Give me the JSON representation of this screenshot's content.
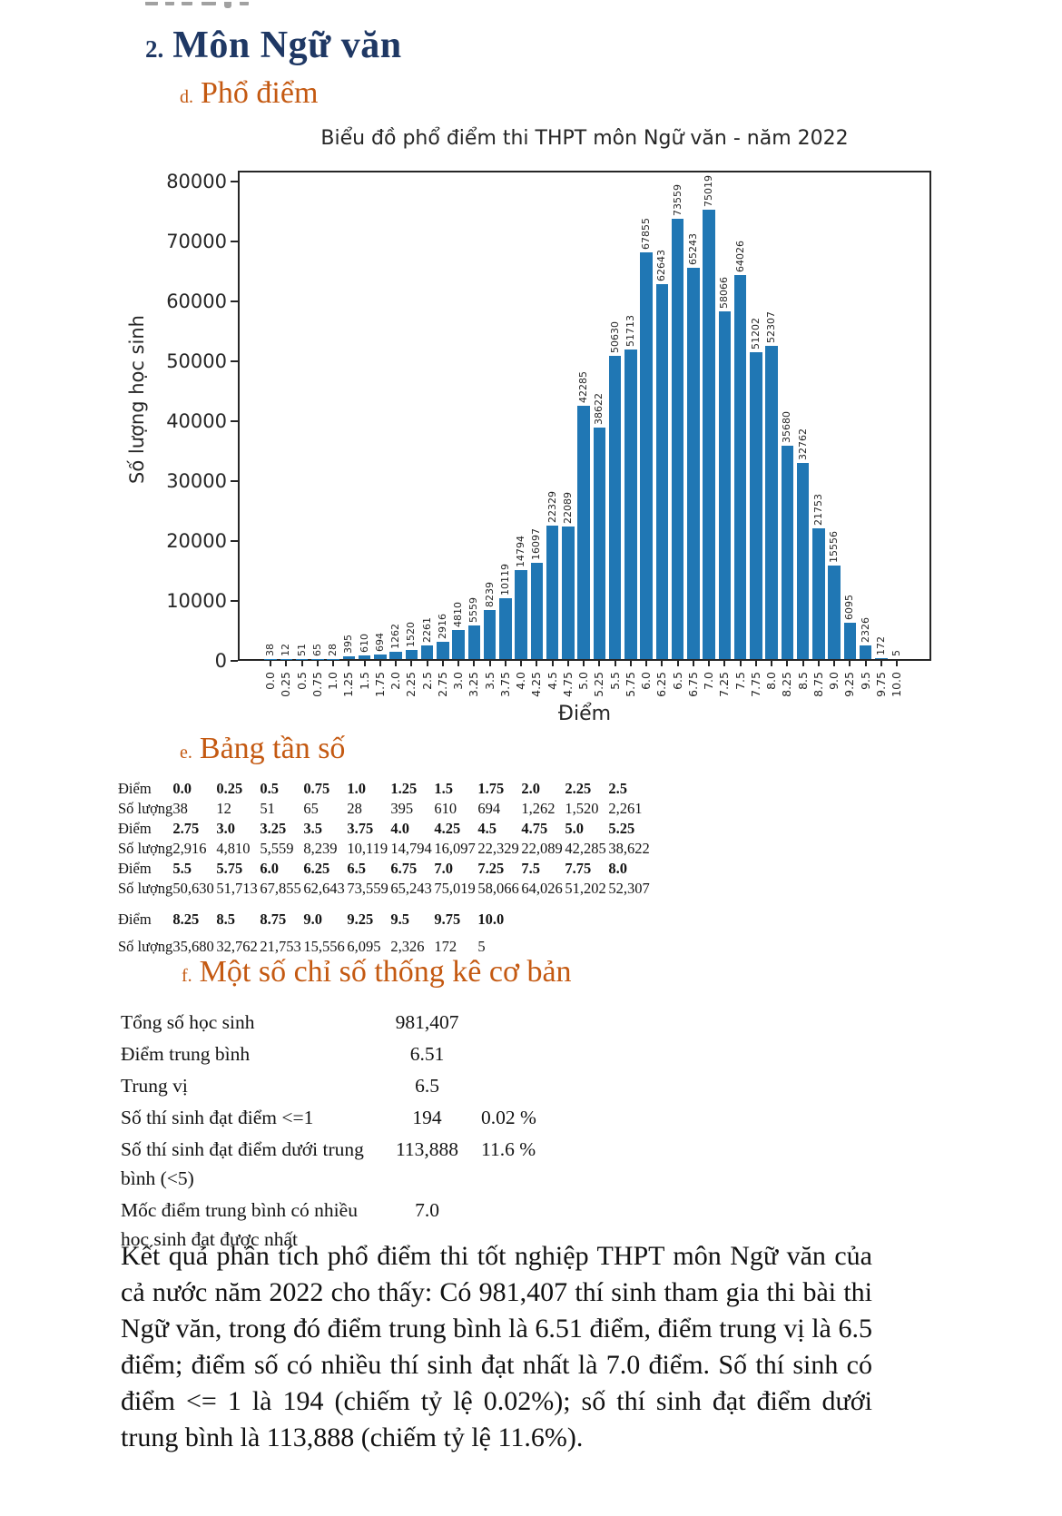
{
  "page": {
    "section_number": "2.",
    "section_title": "Môn Ngữ văn",
    "sub_d_prefix": "d.",
    "sub_d_title": "Phổ điểm",
    "sub_e_prefix": "e.",
    "sub_e_title": "Bảng tần số",
    "sub_f_prefix": "f.",
    "sub_f_title": "Một số chỉ số thống kê cơ bản"
  },
  "chart_data": {
    "type": "bar",
    "title": "Biểu đồ phổ điểm thi THPT môn Ngữ văn - năm 2022",
    "xlabel": "Điểm",
    "ylabel": "Số lượng học sinh",
    "categories": [
      "0.0",
      "0.25",
      "0.5",
      "0.75",
      "1.0",
      "1.25",
      "1.5",
      "1.75",
      "2.0",
      "2.25",
      "2.5",
      "2.75",
      "3.0",
      "3.25",
      "3.5",
      "3.75",
      "4.0",
      "4.25",
      "4.5",
      "4.75",
      "5.0",
      "5.25",
      "5.5",
      "5.75",
      "6.0",
      "6.25",
      "6.5",
      "6.75",
      "7.0",
      "7.25",
      "7.5",
      "7.75",
      "8.0",
      "8.25",
      "8.5",
      "8.75",
      "9.0",
      "9.25",
      "9.5",
      "9.75",
      "10.0"
    ],
    "values": [
      38,
      12,
      51,
      65,
      28,
      395,
      610,
      694,
      1262,
      1520,
      2261,
      2916,
      4810,
      5559,
      8239,
      10119,
      14794,
      16097,
      22329,
      22089,
      42285,
      38622,
      50630,
      51713,
      67855,
      62643,
      73559,
      65243,
      75019,
      58066,
      64026,
      51202,
      52307,
      35680,
      32762,
      21753,
      15556,
      6095,
      2326,
      172,
      5
    ],
    "yticks": [
      0,
      10000,
      20000,
      30000,
      40000,
      50000,
      60000,
      70000,
      80000
    ],
    "ylim": [
      0,
      81200
    ],
    "bar_labels_rotation": 90,
    "grid": false,
    "legend": null,
    "bar_color": "#2077b4"
  },
  "freq_table": {
    "score_label": "Điểm",
    "count_label": "Số lượng",
    "groups": [
      {
        "scores": [
          "0.0",
          "0.25",
          "0.5",
          "0.75",
          "1.0",
          "1.25",
          "1.5",
          "1.75",
          "2.0",
          "2.25",
          "2.5"
        ],
        "counts": [
          "38",
          "12",
          "51",
          "65",
          "28",
          "395",
          "610",
          "694",
          "1,262",
          "1,520",
          "2,261"
        ]
      },
      {
        "scores": [
          "2.75",
          "3.0",
          "3.25",
          "3.5",
          "3.75",
          "4.0",
          "4.25",
          "4.5",
          "4.75",
          "5.0",
          "5.25"
        ],
        "counts": [
          "2,916",
          "4,810",
          "5,559",
          "8,239",
          "10,119",
          "14,794",
          "16,097",
          "22,329",
          "22,089",
          "42,285",
          "38,622"
        ]
      },
      {
        "scores": [
          "5.5",
          "5.75",
          "6.0",
          "6.25",
          "6.5",
          "6.75",
          "7.0",
          "7.25",
          "7.5",
          "7.75",
          "8.0"
        ],
        "counts": [
          "50,630",
          "51,713",
          "67,855",
          "62,643",
          "73,559",
          "65,243",
          "75,019",
          "58,066",
          "64,026",
          "51,202",
          "52,307"
        ]
      },
      {
        "scores": [
          "8.25",
          "8.5",
          "8.75",
          "9.0",
          "9.25",
          "9.5",
          "9.75",
          "10.0"
        ],
        "counts": [
          "35,680",
          "32,762",
          "21,753",
          "15,556",
          "6,095",
          "2,326",
          "172",
          "5"
        ]
      }
    ]
  },
  "stats": {
    "rows": [
      {
        "label": "Tổng số học sinh",
        "value": "981,407",
        "pct": ""
      },
      {
        "label": "Điểm trung bình",
        "value": "6.51",
        "pct": ""
      },
      {
        "label": "Trung vị",
        "value": "6.5",
        "pct": ""
      },
      {
        "label": "Số thí sinh đạt điểm <=1",
        "value": "194",
        "pct": "0.02 %"
      },
      {
        "label": "Số thí sinh đạt điểm dưới trung bình (<5)",
        "value": "113,888",
        "pct": "11.6 %"
      },
      {
        "label": "Mốc điểm trung bình có nhiều học sinh đạt được nhất",
        "value": "7.0",
        "pct": ""
      }
    ]
  },
  "paragraph": "Kết quả phân tích phổ điểm thi tốt nghiệp THPT môn Ngữ văn của cả nước năm 2022 cho thấy: Có 981,407 thí sinh tham gia thi bài thi Ngữ văn, trong đó điểm trung bình là 6.51 điểm, điểm trung vị là 6.5 điểm; điểm số có nhiều thí sinh đạt nhất là 7.0 điểm. Số thí sinh có điểm <= 1 là 194 (chiếm tỷ lệ 0.02%); số thí sinh đạt điểm dưới trung bình là 113,888 (chiếm tỷ lệ 11.6%).",
  "colors": {
    "heading_navy": "#1f3864",
    "heading_orange": "#c45911",
    "bar_blue": "#2077b4",
    "chart_text": "#262626"
  }
}
